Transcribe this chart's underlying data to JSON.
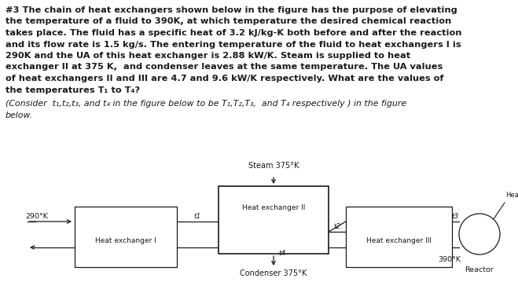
{
  "bg_color": "#ffffff",
  "text_color": "#1a1a1a",
  "lc": "#1a1a1a",
  "main_text_fontsize": 8.2,
  "diagram_fontsize": 6.8,
  "steam_label": "Steam 375°K",
  "condenser_label": "Condenser 375°K",
  "hx1_label": "Heat exchanger I",
  "hx2_label": "Heat exchanger II",
  "hx3_label": "Heat exchanger III",
  "reactor_label": "Reactor",
  "heat_label": "Heat",
  "temp_290": "290°K",
  "temp_390": "390°K",
  "t1_label": "t1",
  "t2_label": "t2",
  "t3_label": "t3",
  "t4_label": "t4",
  "para1": "#3 The chain of heat exchangers shown below in the figure has the purpose of elevating",
  "para2": "the temperature of a fluid to 390K, at which temperature the desired chemical reaction",
  "para3": "takes place. The fluid has a specific heat of 3.2 kJ/kg-K both before and after the reaction",
  "para4": "and its flow rate is 1.5 kg/s. The entering temperature of the fluid to heat exchangers I is",
  "para5": "290K and the UA of this heat exchanger is 2.88 kW/K. Steam is supplied to heat",
  "para6": "exchanger II at 375 K,  and condenser leaves at the same temperature. The UA values",
  "para7": "of heat exchangers II and III are 4.7 and 9.6 kW/K respectively. What are the values of",
  "para8": "the temperatures T₁ to T₄?",
  "consider1": "(Consider  t₁,t₂,t₃, and t₄ in the figure below to be T₁,T₂,T₃,  and T₄ respectively ) in the figure",
  "consider2": "below."
}
